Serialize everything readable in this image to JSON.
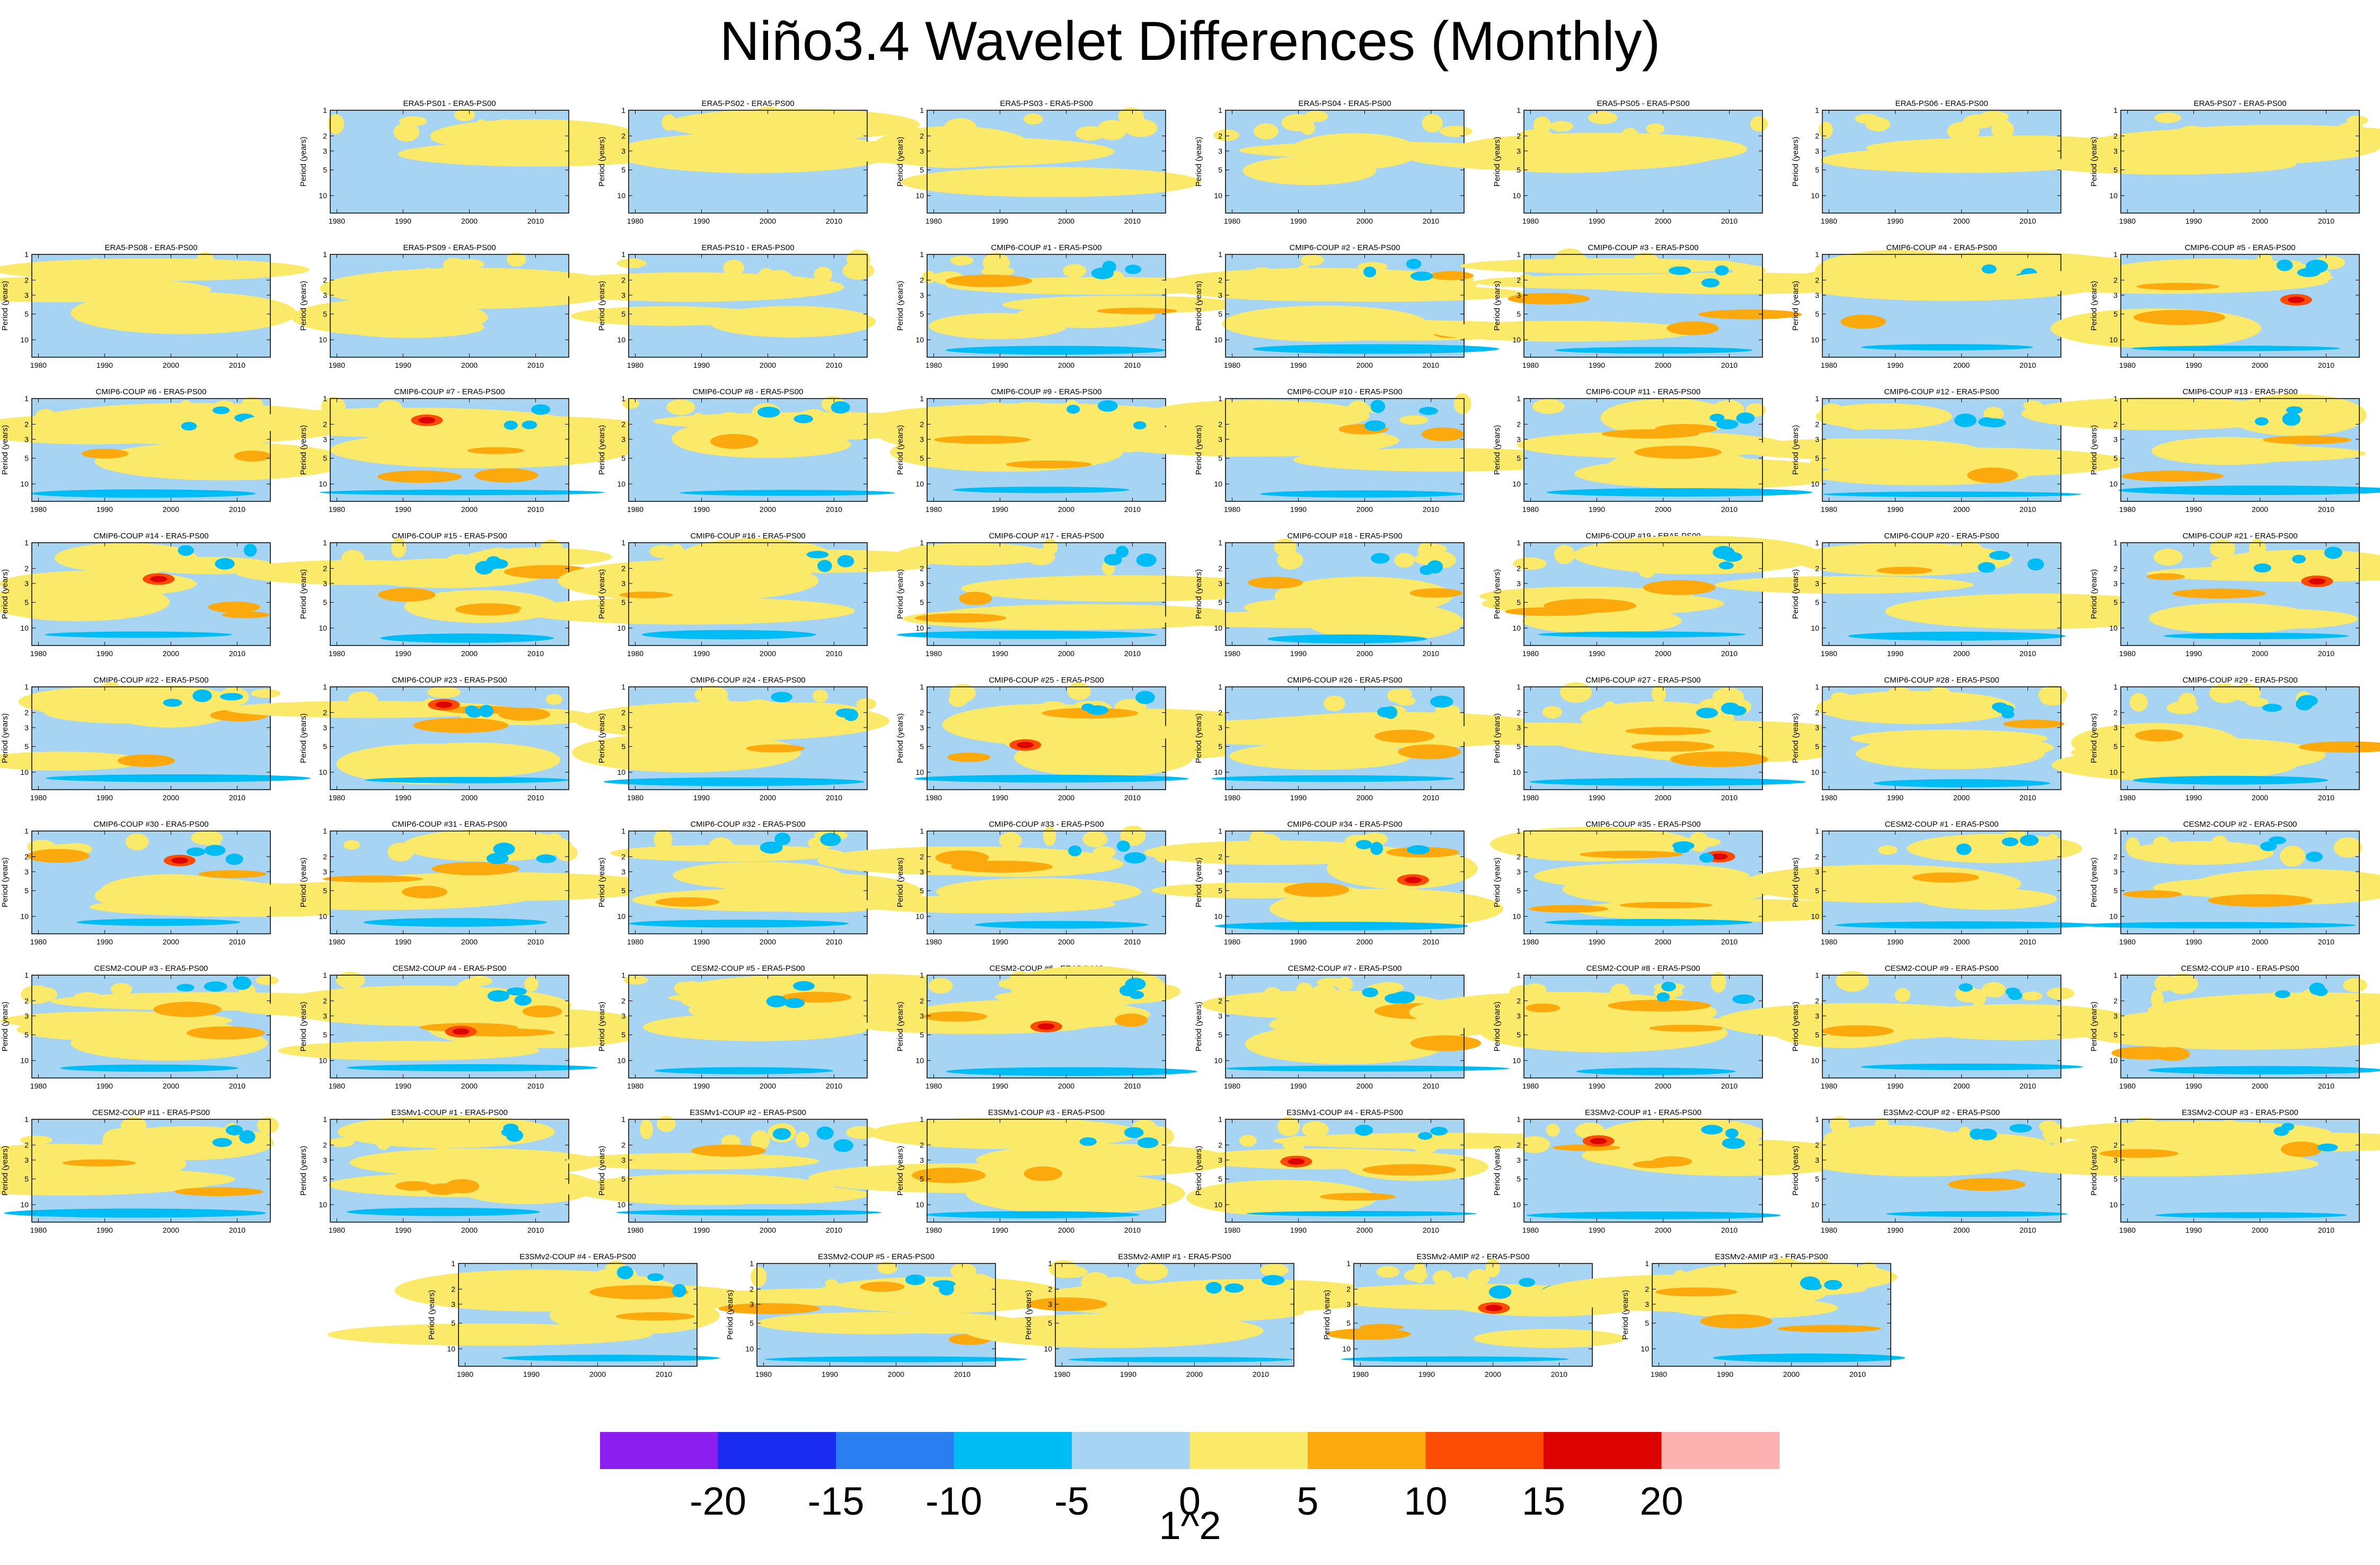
{
  "title": "Niño3.4 Wavelet Differences (Monthly)",
  "chart_data": {
    "type": "heatmap",
    "title": "Niño3.4 Wavelet Differences (Monthly)",
    "panel_ylabel": "Period (years)",
    "y_ticks": [
      "1",
      "2",
      "3",
      "5",
      "10"
    ],
    "x_ticks": [
      "1980",
      "1990",
      "2000",
      "2010"
    ],
    "xlim": [
      1979,
      2015
    ],
    "ylim_years": [
      1,
      16
    ],
    "colorbar": {
      "levels": [
        "-20",
        "-15",
        "-10",
        "-5",
        "0",
        "5",
        "10",
        "15",
        "20"
      ],
      "colors": [
        "#8b1ff0",
        "#1a2bf0",
        "#2b7ef0",
        "#00bcf5",
        "#a6d4f2",
        "#fbe96a",
        "#fba90c",
        "#fb4c05",
        "#dd0303",
        "#fdb1b1"
      ],
      "units": "1^2"
    },
    "panels": [
      "ERA5-PS01 - ERA5-PS00",
      "ERA5-PS02 - ERA5-PS00",
      "ERA5-PS03 - ERA5-PS00",
      "ERA5-PS04 - ERA5-PS00",
      "ERA5-PS05 - ERA5-PS00",
      "ERA5-PS06 - ERA5-PS00",
      "ERA5-PS07 - ERA5-PS00",
      "ERA5-PS08 - ERA5-PS00",
      "ERA5-PS09 - ERA5-PS00",
      "ERA5-PS10 - ERA5-PS00",
      "CMIP6-COUP  #1 - ERA5-PS00",
      "CMIP6-COUP  #2 - ERA5-PS00",
      "CMIP6-COUP  #3 - ERA5-PS00",
      "CMIP6-COUP  #4 - ERA5-PS00",
      "CMIP6-COUP  #5 - ERA5-PS00",
      "CMIP6-COUP  #6 - ERA5-PS00",
      "CMIP6-COUP  #7 - ERA5-PS00",
      "CMIP6-COUP  #8 - ERA5-PS00",
      "CMIP6-COUP  #9 - ERA5-PS00",
      "CMIP6-COUP  #10 - ERA5-PS00",
      "CMIP6-COUP  #11 - ERA5-PS00",
      "CMIP6-COUP  #12 - ERA5-PS00",
      "CMIP6-COUP  #13 - ERA5-PS00",
      "CMIP6-COUP  #14 - ERA5-PS00",
      "CMIP6-COUP  #15 - ERA5-PS00",
      "CMIP6-COUP  #16 - ERA5-PS00",
      "CMIP6-COUP  #17 - ERA5-PS00",
      "CMIP6-COUP  #18 - ERA5-PS00",
      "CMIP6-COUP  #19 - ERA5-PS00",
      "CMIP6-COUP  #20 - ERA5-PS00",
      "CMIP6-COUP  #21 - ERA5-PS00",
      "CMIP6-COUP  #22 - ERA5-PS00",
      "CMIP6-COUP  #23 - ERA5-PS00",
      "CMIP6-COUP  #24 - ERA5-PS00",
      "CMIP6-COUP  #25 - ERA5-PS00",
      "CMIP6-COUP  #26 - ERA5-PS00",
      "CMIP6-COUP  #27 - ERA5-PS00",
      "CMIP6-COUP  #28 - ERA5-PS00",
      "CMIP6-COUP  #29 - ERA5-PS00",
      "CMIP6-COUP  #30 - ERA5-PS00",
      "CMIP6-COUP  #31 - ERA5-PS00",
      "CMIP6-COUP  #32 - ERA5-PS00",
      "CMIP6-COUP  #33 - ERA5-PS00",
      "CMIP6-COUP  #34 - ERA5-PS00",
      "CMIP6-COUP  #35 - ERA5-PS00",
      "CESM2-COUP  #1 - ERA5-PS00",
      "CESM2-COUP  #2 - ERA5-PS00",
      "CESM2-COUP  #3 - ERA5-PS00",
      "CESM2-COUP  #4 - ERA5-PS00",
      "CESM2-COUP  #5 - ERA5-PS00",
      "CESM2-COUP  #6 - ERA5-PS00",
      "CESM2-COUP  #7 - ERA5-PS00",
      "CESM2-COUP  #8 - ERA5-PS00",
      "CESM2-COUP  #9 - ERA5-PS00",
      "CESM2-COUP  #10 - ERA5-PS00",
      "CESM2-COUP  #11 - ERA5-PS00",
      "E3SMv1-COUP  #1 - ERA5-PS00",
      "E3SMv1-COUP  #2 - ERA5-PS00",
      "E3SMv1-COUP  #3 - ERA5-PS00",
      "E3SMv1-COUP  #4 - ERA5-PS00",
      "E3SMv2-COUP  #1 - ERA5-PS00",
      "E3SMv2-COUP  #2 - ERA5-PS00",
      "E3SMv2-COUP  #3 - ERA5-PS00",
      "E3SMv2-COUP  #4 - ERA5-PS00",
      "E3SMv2-COUP  #5 - ERA5-PS00",
      "E3SMv2-AMIP  #1 - ERA5-PS00",
      "E3SMv2-AMIP  #2 - ERA5-PS00",
      "E3SMv2-AMIP  #3 - ERA5-PS00"
    ]
  }
}
